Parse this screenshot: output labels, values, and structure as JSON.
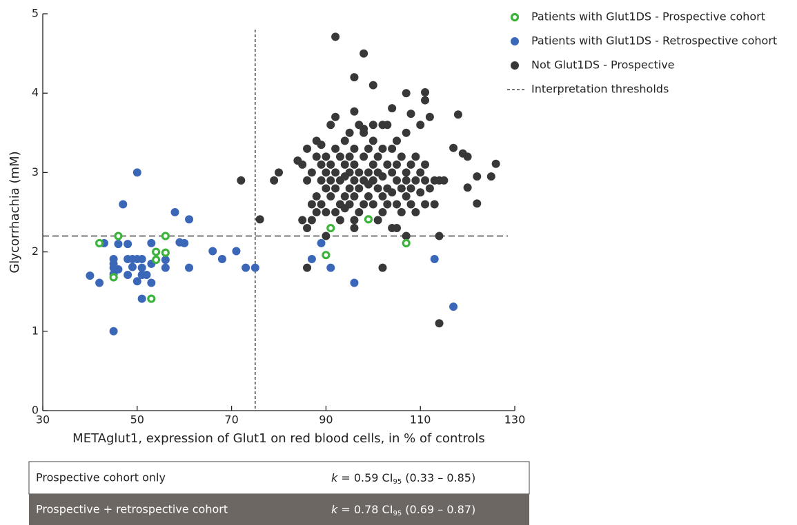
{
  "chart_data": {
    "type": "scatter",
    "xlabel": "METAglut1, expression of Glut1 on red blood cells, in % of controls",
    "ylabel": "Glycorrhachia (mM)",
    "xlim": [
      30,
      130
    ],
    "xticks": [
      30,
      50,
      70,
      90,
      110,
      130
    ],
    "ylim": [
      0,
      5
    ],
    "yticks": [
      0,
      1,
      2,
      3,
      4,
      5
    ],
    "grid": false,
    "legend": "upper right",
    "thresholds": {
      "name": "Interpretation thresholds",
      "x": 75,
      "y": 2.2
    },
    "series": [
      {
        "name": "Patients with Glut1DS - Prospective cohort",
        "color": "#3cb43c",
        "marker": "ring",
        "x": [
          42,
          46,
          56,
          54,
          56,
          54,
          45,
          53,
          91,
          99,
          90,
          107
        ],
        "values": [
          2.11,
          2.2,
          2.2,
          2.0,
          1.99,
          1.9,
          1.68,
          1.41,
          2.3,
          2.41,
          1.96,
          2.11
        ]
      },
      {
        "name": "Patients with Glut1DS - Retrospective cohort",
        "color": "#3b67b8",
        "marker": "dot",
        "x": [
          40,
          42,
          43,
          45,
          45,
          45,
          45,
          45,
          46,
          46,
          47,
          48,
          48,
          48,
          49,
          49,
          50,
          50,
          50,
          51,
          51,
          51,
          51,
          52,
          53,
          53,
          53,
          56,
          56,
          58,
          59,
          60,
          61,
          61,
          66,
          68,
          71,
          73,
          75,
          89,
          87,
          91,
          96,
          113,
          117
        ],
        "values": [
          1.7,
          1.61,
          2.11,
          1.91,
          1.85,
          1.8,
          1.72,
          1.0,
          2.1,
          1.78,
          2.6,
          2.1,
          1.91,
          1.71,
          1.91,
          1.81,
          3.0,
          1.91,
          1.63,
          1.91,
          1.8,
          1.71,
          1.41,
          1.71,
          2.11,
          1.85,
          1.61,
          1.9,
          1.8,
          2.5,
          2.12,
          2.11,
          2.41,
          1.8,
          2.01,
          1.91,
          2.01,
          1.8,
          1.8,
          2.11,
          1.91,
          1.8,
          1.61,
          1.91,
          1.31
        ]
      },
      {
        "name": "Not Glut1DS - Prospective",
        "color": "#383838",
        "marker": "dot",
        "x": [
          72,
          76,
          79,
          80,
          92,
          98,
          96,
          100,
          86,
          102,
          114,
          114,
          107,
          111,
          107,
          118,
          117,
          119,
          120,
          120,
          122,
          122,
          125,
          126,
          111,
          104,
          108,
          96,
          85,
          85,
          86,
          86,
          86,
          87,
          87,
          87,
          88,
          88,
          88,
          88,
          89,
          89,
          89,
          89,
          90,
          90,
          90,
          90,
          90,
          91,
          91,
          91,
          91,
          92,
          92,
          92,
          92,
          92,
          93,
          93,
          93,
          93,
          94,
          94,
          94,
          94,
          95,
          95,
          95,
          95,
          95,
          96,
          96,
          96,
          96,
          96,
          97,
          97,
          97,
          97,
          98,
          98,
          98,
          98,
          99,
          99,
          99,
          99,
          100,
          100,
          100,
          100,
          101,
          101,
          101,
          101,
          102,
          102,
          102,
          102,
          103,
          103,
          103,
          103,
          104,
          104,
          104,
          104,
          105,
          105,
          105,
          105,
          106,
          106,
          106,
          107,
          107,
          107,
          107,
          108,
          108,
          108,
          109,
          109,
          109,
          110,
          110,
          110,
          111,
          111,
          111,
          112,
          112,
          113,
          113,
          114,
          115,
          96,
          105,
          84,
          98,
          100,
          94,
          102
        ],
        "values": [
          2.9,
          2.41,
          2.9,
          3.0,
          4.71,
          4.5,
          4.2,
          4.1,
          1.8,
          1.8,
          1.1,
          2.2,
          2.2,
          4.01,
          4.0,
          3.73,
          3.31,
          3.24,
          3.2,
          2.81,
          2.95,
          2.61,
          2.95,
          3.11,
          3.91,
          3.81,
          3.74,
          3.77,
          3.1,
          2.4,
          2.3,
          2.9,
          3.3,
          2.6,
          3.0,
          2.4,
          3.2,
          2.7,
          2.5,
          3.4,
          2.9,
          3.1,
          2.6,
          3.35,
          2.8,
          3.0,
          2.5,
          3.2,
          2.2,
          2.7,
          3.1,
          3.6,
          2.9,
          2.5,
          3.3,
          3.7,
          2.8,
          3.0,
          2.6,
          3.2,
          2.9,
          2.4,
          3.1,
          2.7,
          3.4,
          2.95,
          2.8,
          3.0,
          2.6,
          3.5,
          3.2,
          2.9,
          2.4,
          3.1,
          2.7,
          3.3,
          3.0,
          2.8,
          3.6,
          2.5,
          3.2,
          2.9,
          2.6,
          3.5,
          3.0,
          2.7,
          3.3,
          2.85,
          3.1,
          2.6,
          2.9,
          3.4,
          2.8,
          3.2,
          2.4,
          3.0,
          2.7,
          3.3,
          2.95,
          2.5,
          3.1,
          2.8,
          3.6,
          2.6,
          3.0,
          2.3,
          3.3,
          2.75,
          2.9,
          3.4,
          2.6,
          3.1,
          2.8,
          3.2,
          2.5,
          3.0,
          2.7,
          3.5,
          2.9,
          3.1,
          2.6,
          2.8,
          2.9,
          3.2,
          2.5,
          2.75,
          3.0,
          3.6,
          2.9,
          2.6,
          3.1,
          2.8,
          3.7,
          2.9,
          2.6,
          2.9,
          2.9,
          2.3,
          2.3,
          3.15,
          3.55,
          3.6,
          2.55,
          3.6
        ]
      }
    ]
  },
  "table": {
    "rows": [
      {
        "label": "Prospective cohort only",
        "stat": [
          "k",
          " = 0.59 CI",
          "95",
          " (0.33 – 0.85)"
        ]
      },
      {
        "label": "Prospective + retrospective cohort",
        "stat": [
          "k",
          " = 0.78 CI",
          "95",
          " (0.69 – 0.87)"
        ]
      }
    ]
  }
}
